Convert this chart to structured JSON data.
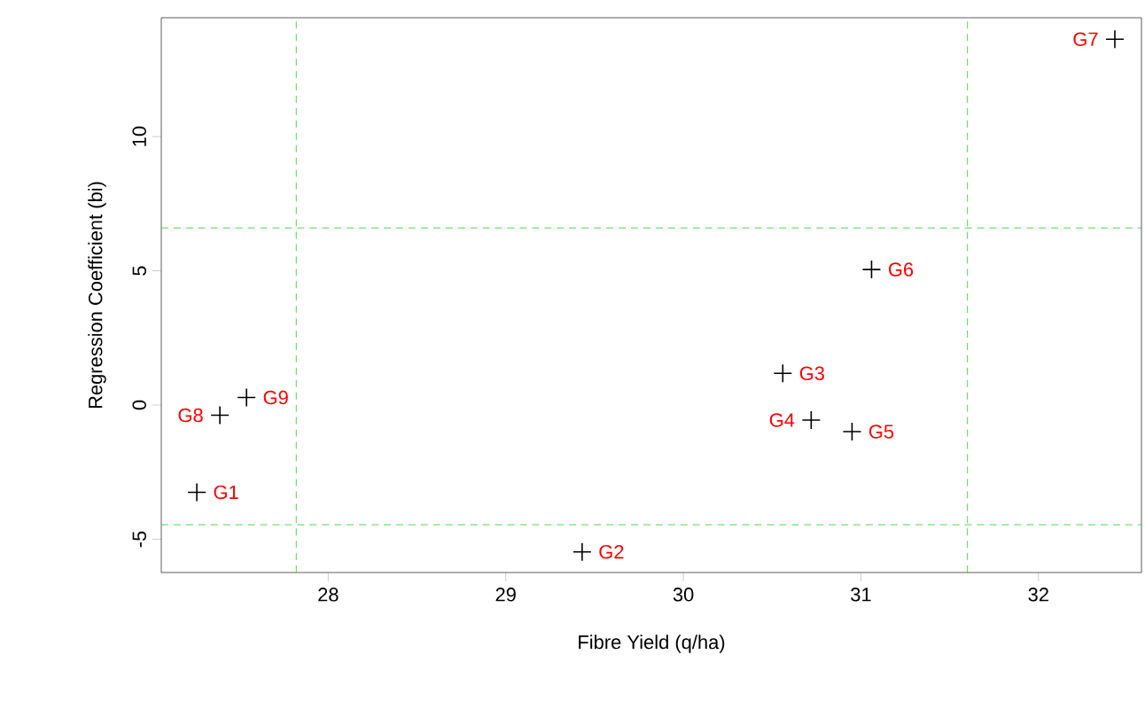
{
  "chart_data": {
    "type": "scatter",
    "xlabel": "Fibre Yield (q/ha)",
    "ylabel": "Regression Coefficient (bi)",
    "x": [
      27.26,
      29.43,
      30.56,
      30.72,
      30.95,
      31.06,
      32.43,
      27.39,
      27.54
    ],
    "series": [
      {
        "color": "#000000",
        "values": [
          -3.25,
          -5.47,
          1.18,
          -0.56,
          -0.99,
          5.05,
          13.63,
          -0.38,
          0.28
        ]
      }
    ],
    "marker": "cross",
    "grid": false,
    "xlim": [
      27.06,
      32.58
    ],
    "ylim": [
      -6.24,
      14.43
    ],
    "xticks": [
      28,
      29,
      30,
      31,
      32
    ],
    "yticks": [
      -5,
      0,
      5,
      10
    ],
    "annotations": [
      {
        "text": "G1",
        "x": 27.26,
        "y": -3.25
      },
      {
        "text": "G2",
        "x": 29.43,
        "y": -5.47
      },
      {
        "text": "G3",
        "x": 30.56,
        "y": 1.18
      },
      {
        "text": "G4",
        "x": 30.72,
        "y": -0.56
      },
      {
        "text": "G5",
        "x": 30.95,
        "y": -0.99
      },
      {
        "text": "G6",
        "x": 31.06,
        "y": 5.05
      },
      {
        "text": "G7",
        "x": 32.43,
        "y": 13.63
      },
      {
        "text": "G8",
        "x": 27.39,
        "y": -0.38
      },
      {
        "text": "G9",
        "x": 27.54,
        "y": 0.28
      }
    ],
    "ref_lines": [
      {
        "axis": "x",
        "value": 27.82,
        "color": "#22cc22",
        "line_style": "dashed"
      },
      {
        "axis": "x",
        "value": 31.6,
        "color": "#22cc22",
        "line_style": "dashed"
      },
      {
        "axis": "y",
        "value": 6.6,
        "color": "#22cc22",
        "line_style": "dashed"
      },
      {
        "axis": "y",
        "value": -4.46,
        "color": "#22cc22",
        "line_style": "dashed"
      }
    ]
  }
}
